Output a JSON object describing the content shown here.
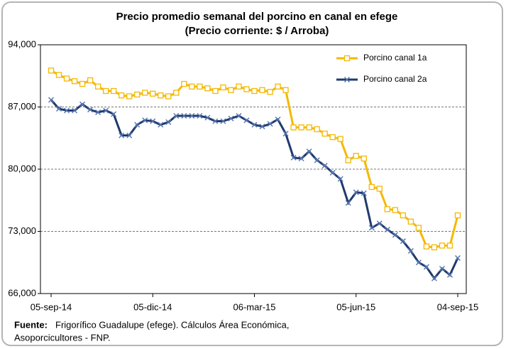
{
  "chart_data": {
    "type": "line",
    "title": [
      "Precio promedio semanal del porcino en canal en efege",
      "(Precio corriente: $ / Arroba)"
    ],
    "categories": [
      "05-sep-14",
      null,
      null,
      null,
      null,
      null,
      null,
      null,
      null,
      null,
      null,
      null,
      null,
      "05-dic-14",
      null,
      null,
      null,
      null,
      null,
      null,
      null,
      null,
      null,
      null,
      null,
      null,
      "06-mar-15",
      null,
      null,
      null,
      null,
      null,
      null,
      null,
      null,
      null,
      null,
      null,
      null,
      "05-jun-15",
      null,
      null,
      null,
      null,
      null,
      null,
      null,
      null,
      null,
      null,
      null,
      null,
      "04-sep-15"
    ],
    "series": [
      {
        "name": "Porcino canal 1a",
        "color": "#f5b800",
        "marker": "square",
        "values": [
          91100,
          90600,
          90200,
          89900,
          89600,
          90000,
          89300,
          88800,
          88800,
          88300,
          88200,
          88400,
          88600,
          88500,
          88300,
          88200,
          88600,
          89600,
          89300,
          89300,
          89100,
          88800,
          89200,
          88900,
          89300,
          89000,
          88800,
          88900,
          88700,
          89300,
          88900,
          84700,
          84700,
          84700,
          84500,
          84000,
          83600,
          83400,
          81000,
          81500,
          81200,
          78000,
          77800,
          75500,
          75400,
          74800,
          74100,
          73400,
          71300,
          71200,
          71400,
          71400,
          74800
        ]
      },
      {
        "name": "Porcino canal 2a",
        "color": "#1f3a6e",
        "marker": "x",
        "values": [
          87800,
          86800,
          86600,
          86600,
          87300,
          86700,
          86400,
          86600,
          86200,
          83800,
          83800,
          85000,
          85500,
          85400,
          85000,
          85300,
          86000,
          86000,
          86000,
          86000,
          85800,
          85400,
          85400,
          85700,
          86000,
          85500,
          85000,
          84800,
          85100,
          85600,
          84000,
          81300,
          81200,
          82000,
          81000,
          80400,
          79600,
          78900,
          76200,
          77400,
          77300,
          73400,
          73900,
          73200,
          72600,
          71900,
          70800,
          69500,
          69000,
          67700,
          68800,
          68100,
          70000
        ]
      }
    ],
    "ylim": [
      66000,
      94000
    ],
    "yticks": [
      {
        "value": 66000,
        "label": "66,000"
      },
      {
        "value": 73000,
        "label": "73,000"
      },
      {
        "value": 80000,
        "label": "80,000"
      },
      {
        "value": 87000,
        "label": "87,000"
      },
      {
        "value": 94000,
        "label": "94,000"
      }
    ],
    "grid": true,
    "legend": "upper right",
    "source": {
      "label": "Fuente:",
      "lines": [
        "Frigorífico Guadalupe (efege). Cálculos Área Económica,",
        "Asoporcicultores - FNP."
      ]
    }
  }
}
